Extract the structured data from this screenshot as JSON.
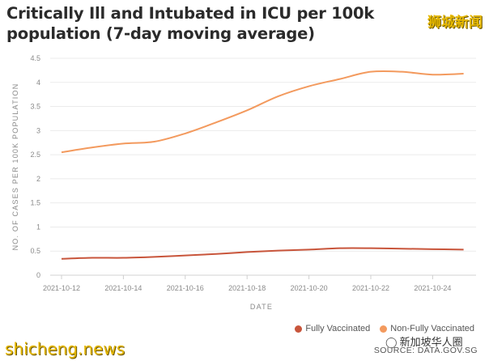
{
  "title": "Critically Ill and Intubated in ICU per 100k population (7-day moving average)",
  "watermark_top": "狮城新闻",
  "watermark_bottom": "shicheng.news",
  "watermark_wechat": "新加坡华人圈",
  "source": "SOURCE: DATA.GOV.SG",
  "colors": {
    "fully": "#c8553b",
    "non_fully": "#f39a5e",
    "grid": "#ebebeb",
    "axis_text": "#8a8a8a"
  },
  "chart_data": {
    "type": "line",
    "title": "Critically Ill and Intubated in ICU per 100k population (7-day moving average)",
    "xlabel": "DATE",
    "ylabel": "NO. OF CASES PER 100K POPULATION",
    "ylim": [
      0,
      4.5
    ],
    "yticks": [
      "0",
      "0.5",
      "1",
      "1.5",
      "2",
      "2.5",
      "3",
      "3.5",
      "4",
      "4.5"
    ],
    "xticks": [
      "2021-10-12",
      "2021-10-14",
      "2021-10-16",
      "2021-10-18",
      "2021-10-20",
      "2021-10-22",
      "2021-10-24"
    ],
    "x": [
      "2021-10-12",
      "2021-10-13",
      "2021-10-14",
      "2021-10-15",
      "2021-10-16",
      "2021-10-17",
      "2021-10-18",
      "2021-10-19",
      "2021-10-20",
      "2021-10-21",
      "2021-10-22",
      "2021-10-23",
      "2021-10-24",
      "2021-10-25"
    ],
    "series": [
      {
        "name": "Fully Vaccinated",
        "color": "#c8553b",
        "values": [
          0.34,
          0.36,
          0.36,
          0.38,
          0.41,
          0.44,
          0.48,
          0.51,
          0.53,
          0.56,
          0.56,
          0.55,
          0.54,
          0.53
        ]
      },
      {
        "name": "Non-Fully Vaccinated",
        "color": "#f39a5e",
        "values": [
          2.55,
          2.65,
          2.73,
          2.77,
          2.94,
          3.17,
          3.42,
          3.71,
          3.92,
          4.07,
          4.22,
          4.22,
          4.16,
          4.18
        ]
      }
    ],
    "legend_position": "bottom-right",
    "grid": true
  }
}
